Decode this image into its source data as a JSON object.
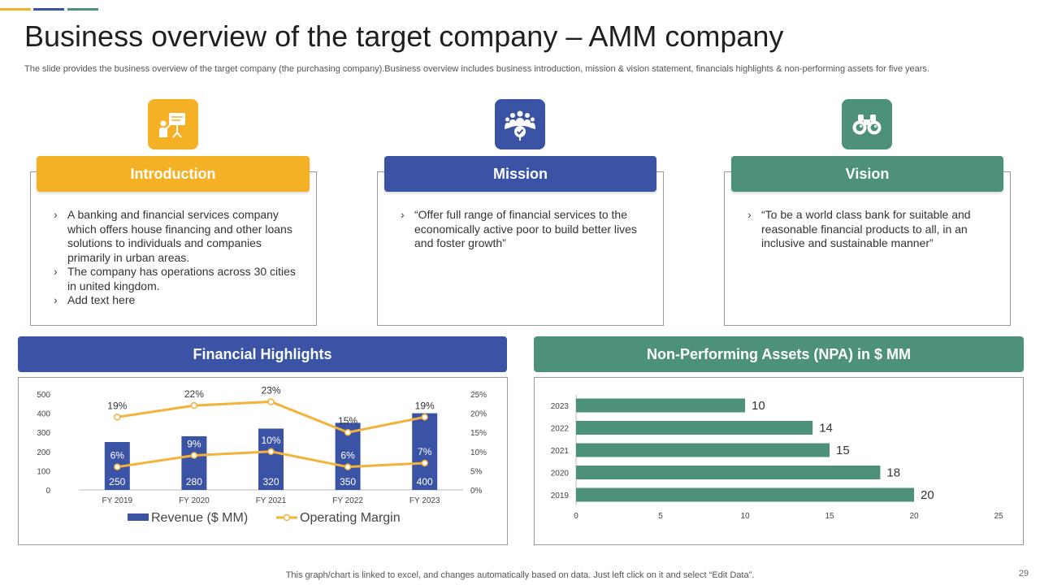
{
  "slide": {
    "title": "Business overview of the target company – AMM company",
    "subtitle": "The slide provides the business overview of the target company (the purchasing company).Business overview includes business introduction, mission & vision statement, financials highlights & non-performing assets for five years.",
    "footer_note": "This graph/chart is linked to excel,  and changes automatically based on data. Just left click on it and select “Edit Data”.",
    "page_number": "29"
  },
  "colors": {
    "yellow": "#F5B126",
    "blue": "#3A53A4",
    "green": "#4C9178",
    "line": "#F3B23A"
  },
  "cards": [
    {
      "header": "Introduction",
      "icon": "presentation-icon",
      "bullets": [
        "A banking and financial services company which offers house financing and other loans solutions to individuals and companies primarily in urban areas.",
        "The company has operations across 30 cities in united kingdom.",
        "Add text here"
      ]
    },
    {
      "header": "Mission",
      "icon": "team-icon",
      "bullets": [
        "“Offer full range of financial services to the economically active poor to build better lives and foster growth”"
      ]
    },
    {
      "header": "Vision",
      "icon": "binoculars-icon",
      "bullets": [
        "“To be a world class bank for suitable and reasonable financial products to all, in an inclusive and sustainable manner”"
      ]
    }
  ],
  "panels": {
    "financial_title": "Financial Highlights",
    "npa_title": "Non-Performing Assets (NPA) in $ MM"
  },
  "chart_data": [
    {
      "type": "bar",
      "title": "Financial Highlights",
      "categories": [
        "FY 2019",
        "FY 2020",
        "FY 2021",
        "FY 2022",
        "FY 2023"
      ],
      "ylim": [
        0,
        500
      ],
      "y_ticks": [
        "0",
        "100",
        "200",
        "300",
        "400",
        "500"
      ],
      "y2lim": [
        0,
        25
      ],
      "y2_ticks": [
        "0%",
        "5%",
        "10%",
        "15%",
        "20%",
        "25%"
      ],
      "series": [
        {
          "name": "Revenue ($ MM)",
          "kind": "bar",
          "values": [
            250,
            280,
            320,
            350,
            400
          ],
          "labels": [
            "250",
            "280",
            "320",
            "350",
            "400"
          ],
          "color": "#3A53A4"
        },
        {
          "name": "Operating Margin",
          "kind": "line",
          "axis": "secondary",
          "values": [
            6,
            9,
            10,
            6,
            7
          ],
          "labels": [
            "6%",
            "9%",
            "10%",
            "6%",
            "7%"
          ],
          "color": "#F3B23A"
        },
        {
          "kind": "line",
          "axis": "secondary",
          "values": [
            19,
            22,
            23,
            15,
            19
          ],
          "labels": [
            "19%",
            "22%",
            "23%",
            "15%",
            "19%"
          ],
          "color": "#F3B23A"
        }
      ],
      "grid": false,
      "legend": "bottom"
    },
    {
      "type": "bar",
      "orientation": "horizontal",
      "title": "Non-Performing Assets (NPA) in $ MM",
      "categories": [
        "2023",
        "2022",
        "2021",
        "2020",
        "2019"
      ],
      "values": [
        10,
        14,
        15,
        18,
        20
      ],
      "labels": [
        "10",
        "14",
        "15",
        "18",
        "20"
      ],
      "xlim": [
        0,
        25
      ],
      "x_ticks": [
        "0",
        "5",
        "10",
        "15",
        "20",
        "25"
      ],
      "color": "#4C9178",
      "grid": false
    }
  ]
}
